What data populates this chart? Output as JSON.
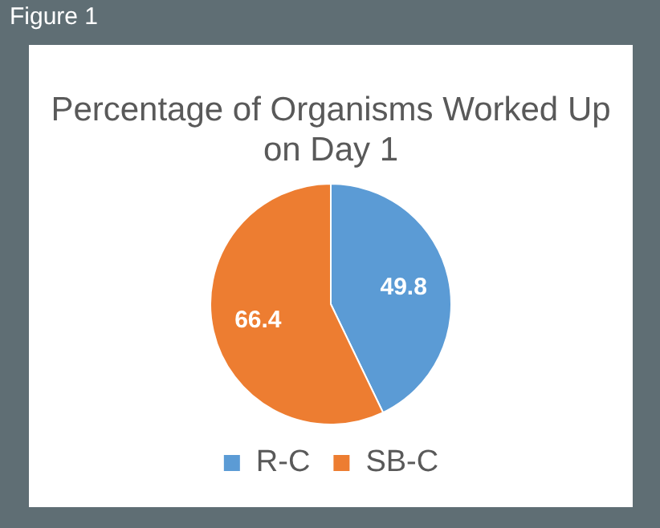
{
  "chart_data": {
    "type": "pie",
    "title": "Percentage of Organisms Worked Up on Day 1",
    "annotations": [
      "Figure 1"
    ],
    "categories": [
      "R-C",
      "SB-C"
    ],
    "values": [
      49.8,
      66.4
    ],
    "colors": [
      "#5b9bd5",
      "#ed7d31"
    ],
    "data_labels": true,
    "legend": "bottom"
  }
}
